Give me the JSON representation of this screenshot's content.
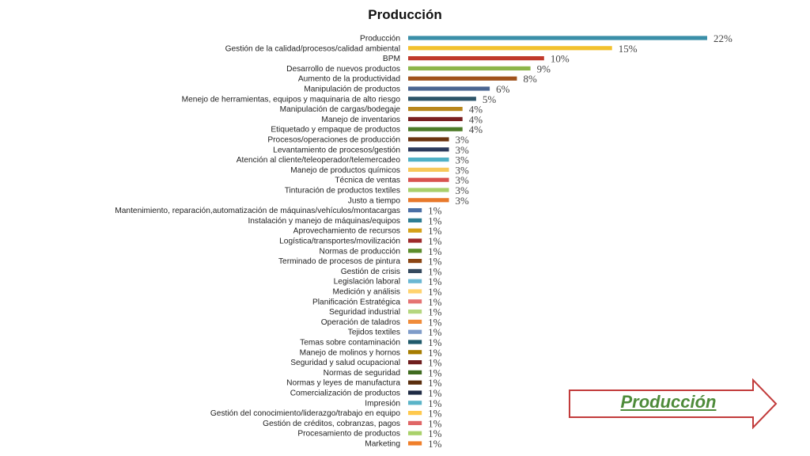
{
  "chart_data": {
    "type": "bar",
    "orientation": "horizontal",
    "title": "Producción",
    "xlabel": "",
    "ylabel": "",
    "value_suffix": "%",
    "grid": false,
    "legend": "none",
    "categories": [
      "Producción",
      "Gestión de la calidad/procesos/calidad ambiental",
      "BPM",
      "Desarrollo de nuevos productos",
      "Aumento de la productividad",
      "Manipulación de productos",
      "Menejo de herramientas, equipos y maquinaria de alto riesgo",
      "Manipulación de cargas/bodegaje",
      "Manejo de inventarios",
      "Etiquetado y empaque de productos",
      "Procesos/operaciones de producción",
      "Levantamiento de procesos/gestión",
      "Atención al cliente/teleoperador/telemercadeo",
      "Manejo de productos químicos",
      "Técnica de ventas",
      "Tinturación de productos textiles",
      "Justo a tiempo",
      "Mantenimiento, reparación,automatización de máquinas/vehículos/montacargas",
      "Instalación y manejo de máquinas/equipos",
      "Aprovechamiento de recursos",
      "Logística/transportes/movilización",
      "Normas de producción",
      "Terminado de procesos de pintura",
      "Gestión de crisis",
      "Legislación laboral",
      "Medición y análisis",
      "Planificación Estratégica",
      "Seguridad industrial",
      "Operación de taladros",
      "Tejidos textiles",
      "Temas sobre contaminación",
      "Manejo de molinos y hornos",
      "Seguridad y salud ocupacional",
      "Normas de seguridad",
      "Normas y leyes de manufactura",
      "Comercialización de productos",
      "Impresión",
      "Gestión del conocimiento/liderazgo/trabajo en equipo",
      "Gestión de créditos, cobranzas, pagos",
      "Procesamiento de productos",
      "Marketing"
    ],
    "values": [
      22,
      15,
      10,
      9,
      8,
      6,
      5,
      4,
      4,
      4,
      3,
      3,
      3,
      3,
      3,
      3,
      3,
      1,
      1,
      1,
      1,
      1,
      1,
      1,
      1,
      1,
      1,
      1,
      1,
      1,
      1,
      1,
      1,
      1,
      1,
      1,
      1,
      1,
      1,
      1,
      1
    ],
    "colors": [
      "#3a8fa8",
      "#f2c12e",
      "#c0392b",
      "#8db54a",
      "#a0521d",
      "#4a6591",
      "#2c5468",
      "#b8861b",
      "#7a1f1f",
      "#4d7a28",
      "#6b3410",
      "#2b3a5c",
      "#4fb0c6",
      "#f7c85a",
      "#d9534f",
      "#a8cf6a",
      "#e8792b",
      "#4a6fa5",
      "#2e7d93",
      "#d4a017",
      "#9e2a2b",
      "#5b8c2a",
      "#8b4513",
      "#34495e",
      "#6ab7d3",
      "#ffd36e",
      "#e57373",
      "#b5d67f",
      "#f08c3a",
      "#7f9cc9",
      "#1f5a6b",
      "#a67c00",
      "#6e1d1d",
      "#3f6b1f",
      "#5a2d0c",
      "#1e2a44",
      "#5ab4c8",
      "#ffc94d",
      "#e06666",
      "#a9d16b",
      "#f07f2a"
    ]
  },
  "nav_button": {
    "label": "Producción",
    "text_color": "#4e8b3a",
    "outline_color": "#c23b3b"
  }
}
